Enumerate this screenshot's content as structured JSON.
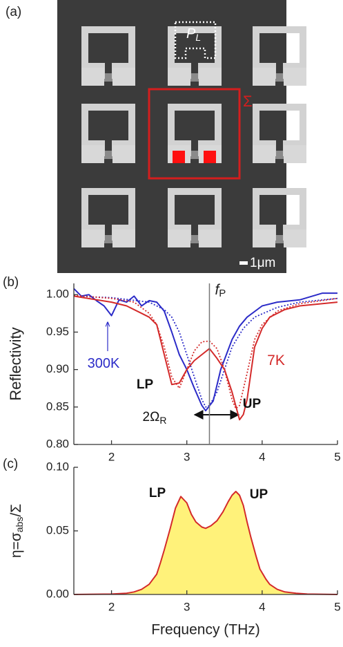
{
  "panels": [
    "(a)",
    "(b)",
    "(c)"
  ],
  "sem_image": {
    "sigma": "Σ",
    "pl": {
      "text": "P",
      "subscript": "L"
    },
    "scale_bar": "1μm"
  },
  "chart_data": [
    {
      "type": "line",
      "ylabel": "Reflectivity",
      "xlim": [
        1.5,
        5
      ],
      "xticks": [
        2,
        3,
        4,
        5
      ],
      "ylim": [
        0.8,
        1.015
      ],
      "yticks": [
        {
          "value": 1.0,
          "label": "1.00"
        },
        {
          "value": 0.95,
          "label": "0.95"
        },
        {
          "value": 0.9,
          "label": "0.90"
        },
        {
          "value": 0.85,
          "label": "0.85"
        },
        {
          "value": 0.8,
          "label": "0.80"
        }
      ],
      "vline": {
        "x": 3.3,
        "label": "f",
        "label_subscript": "P"
      },
      "series": [
        {
          "color": "#2b2bc8",
          "style": "solid",
          "x": [
            1.5,
            1.6,
            1.7,
            1.8,
            1.9,
            2.0,
            2.1,
            2.2,
            2.3,
            2.4,
            2.5,
            2.6,
            2.7,
            2.8,
            2.9,
            3.0,
            3.1,
            3.2,
            3.25,
            3.35,
            3.45,
            3.6,
            3.7,
            3.8,
            4.0,
            4.2,
            4.5,
            4.8,
            5.0
          ],
          "values": [
            1.008,
            0.998,
            1.0,
            0.992,
            0.985,
            0.972,
            0.993,
            0.99,
            0.998,
            0.985,
            0.992,
            0.99,
            0.978,
            0.95,
            0.92,
            0.9,
            0.875,
            0.852,
            0.845,
            0.858,
            0.9,
            0.94,
            0.958,
            0.97,
            0.985,
            0.99,
            0.993,
            1.002,
            1.002
          ]
        },
        {
          "color": "#2b2bc8",
          "style": "dotted",
          "x": [
            1.5,
            2.0,
            2.5,
            2.7,
            2.8,
            2.9,
            3.0,
            3.1,
            3.2,
            3.25,
            3.3,
            3.4,
            3.5,
            3.6,
            3.75,
            3.9,
            4.2,
            4.5,
            5.0
          ],
          "values": [
            0.998,
            0.996,
            0.99,
            0.98,
            0.97,
            0.95,
            0.92,
            0.89,
            0.86,
            0.85,
            0.852,
            0.87,
            0.9,
            0.93,
            0.955,
            0.97,
            0.983,
            0.99,
            0.995
          ]
        },
        {
          "color": "#d42a2a",
          "style": "solid",
          "x": [
            1.5,
            2.0,
            2.2,
            2.4,
            2.5,
            2.6,
            2.7,
            2.8,
            2.9,
            3.0,
            3.1,
            3.2,
            3.3,
            3.4,
            3.5,
            3.6,
            3.7,
            3.75,
            3.8,
            3.9,
            4.0,
            4.1,
            4.3,
            4.5,
            5.0
          ],
          "values": [
            0.998,
            0.99,
            0.985,
            0.975,
            0.97,
            0.96,
            0.92,
            0.88,
            0.882,
            0.9,
            0.912,
            0.92,
            0.928,
            0.915,
            0.9,
            0.87,
            0.833,
            0.84,
            0.86,
            0.93,
            0.955,
            0.97,
            0.98,
            0.985,
            0.99
          ]
        },
        {
          "color": "#d42a2a",
          "style": "dotted",
          "x": [
            1.5,
            2.0,
            2.3,
            2.5,
            2.6,
            2.7,
            2.8,
            2.9,
            3.0,
            3.1,
            3.2,
            3.3,
            3.4,
            3.5,
            3.6,
            3.65,
            3.7,
            3.8,
            3.9,
            4.0,
            4.2,
            4.5,
            5.0
          ],
          "values": [
            0.999,
            0.995,
            0.99,
            0.975,
            0.96,
            0.93,
            0.89,
            0.875,
            0.9,
            0.925,
            0.937,
            0.938,
            0.928,
            0.9,
            0.86,
            0.848,
            0.852,
            0.895,
            0.94,
            0.96,
            0.978,
            0.988,
            0.995
          ]
        }
      ],
      "annotations": [
        {
          "text": "300K",
          "color": "#2b2bc8"
        },
        {
          "text": "7K",
          "color": "#d42a2a"
        },
        {
          "text": "LP",
          "color": "#111111"
        },
        {
          "text": "UP",
          "color": "#111111"
        },
        {
          "text": "2Ω",
          "subscript": "R",
          "color": "#111111"
        }
      ]
    },
    {
      "type": "area",
      "ylabel": [
        {
          "text": "η=σ"
        },
        {
          "text": "abs",
          "sub": true
        },
        {
          "text": "/Σ"
        }
      ],
      "xlabel": "Frequency (THz)",
      "xlim": [
        1.5,
        5
      ],
      "xticks": [
        2,
        3,
        4,
        5
      ],
      "ylim": [
        0,
        0.1
      ],
      "yticks": [
        {
          "value": 0,
          "label": "0.00"
        },
        {
          "value": 0.05,
          "label": "0.05"
        },
        {
          "value": 0.1,
          "label": "0.10"
        }
      ],
      "series": [
        {
          "color": "#d42a2a",
          "fill": "#fff27a",
          "x": [
            1.5,
            2.0,
            2.2,
            2.3,
            2.4,
            2.5,
            2.6,
            2.65,
            2.7,
            2.78,
            2.85,
            2.92,
            3.0,
            3.06,
            3.12,
            3.2,
            3.25,
            3.32,
            3.4,
            3.48,
            3.55,
            3.6,
            3.65,
            3.7,
            3.75,
            3.8,
            3.85,
            3.92,
            3.97,
            4.05,
            4.1,
            4.2,
            4.3,
            4.45,
            4.6,
            5.0
          ],
          "values": [
            0,
            0.0003,
            0.001,
            0.002,
            0.004,
            0.008,
            0.016,
            0.025,
            0.035,
            0.052,
            0.068,
            0.077,
            0.072,
            0.063,
            0.057,
            0.053,
            0.052,
            0.054,
            0.058,
            0.065,
            0.073,
            0.078,
            0.081,
            0.078,
            0.07,
            0.057,
            0.045,
            0.03,
            0.02,
            0.012,
            0.008,
            0.004,
            0.002,
            0.001,
            0.0003,
            0
          ]
        }
      ],
      "annotations": [
        {
          "text": "LP",
          "color": "#111111"
        },
        {
          "text": "UP",
          "color": "#111111"
        }
      ]
    }
  ]
}
